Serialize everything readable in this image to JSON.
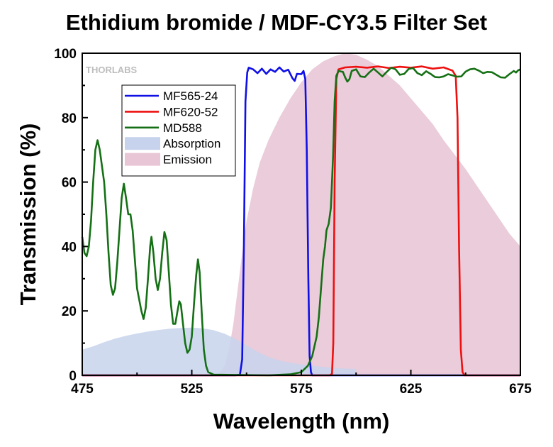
{
  "chart_data": {
    "type": "line",
    "title": "Ethidium bromide / MDF-CY3.5 Filter Set",
    "xlabel": "Wavelength (nm)",
    "ylabel": "Transmission (%)",
    "xlim": [
      475,
      675
    ],
    "ylim": [
      0,
      100
    ],
    "x_ticks": [
      475,
      525,
      575,
      625,
      675
    ],
    "y_ticks": [
      0,
      20,
      40,
      60,
      80,
      100
    ],
    "x_tick_labels": [
      "475",
      "525",
      "575",
      "625",
      "675"
    ],
    "y_tick_labels": [
      "0",
      "20",
      "40",
      "60",
      "80",
      "100"
    ],
    "grid": false,
    "legend_position": "top-left",
    "watermark": "THORLABS",
    "series": [
      {
        "name": "MF565-24",
        "kind": "line",
        "color": "#1010e6",
        "points": [
          [
            475,
            0
          ],
          [
            545,
            0
          ],
          [
            547,
            0.3
          ],
          [
            548,
            5
          ],
          [
            548.8,
            40
          ],
          [
            549.5,
            85
          ],
          [
            550.3,
            94
          ],
          [
            551,
            95.5
          ],
          [
            553,
            95
          ],
          [
            555,
            93.8
          ],
          [
            557,
            95.2
          ],
          [
            559,
            93.6
          ],
          [
            561,
            95
          ],
          [
            563,
            94.2
          ],
          [
            565,
            95.6
          ],
          [
            567,
            94.3
          ],
          [
            569,
            94.9
          ],
          [
            571,
            92.2
          ],
          [
            572,
            91.4
          ],
          [
            573,
            93.6
          ],
          [
            575,
            93.5
          ],
          [
            576,
            94.5
          ],
          [
            576.8,
            92
          ],
          [
            577.5,
            70
          ],
          [
            578.2,
            30
          ],
          [
            578.8,
            6
          ],
          [
            579.4,
            1
          ],
          [
            580,
            0
          ],
          [
            675,
            0
          ]
        ]
      },
      {
        "name": "MF620-52",
        "kind": "line",
        "color": "#ee1010",
        "points": [
          [
            475,
            0
          ],
          [
            588,
            0
          ],
          [
            589,
            0.5
          ],
          [
            589.6,
            10
          ],
          [
            590.2,
            60
          ],
          [
            591,
            92
          ],
          [
            592,
            95
          ],
          [
            595,
            95.6
          ],
          [
            600,
            95.8
          ],
          [
            605,
            95.5
          ],
          [
            610,
            95.9
          ],
          [
            615,
            95.4
          ],
          [
            620,
            95.8
          ],
          [
            625,
            95.5
          ],
          [
            630,
            95.9
          ],
          [
            635,
            95.2
          ],
          [
            640,
            95.6
          ],
          [
            644,
            94.6
          ],
          [
            645.5,
            93
          ],
          [
            646.3,
            80
          ],
          [
            647,
            40
          ],
          [
            647.8,
            8
          ],
          [
            648.6,
            1
          ],
          [
            649.5,
            0
          ],
          [
            675,
            0
          ]
        ]
      },
      {
        "name": "MD588",
        "kind": "line",
        "color": "#157015",
        "points": [
          [
            475,
            43
          ],
          [
            476,
            38
          ],
          [
            477,
            37
          ],
          [
            478,
            40
          ],
          [
            479,
            48
          ],
          [
            480,
            60
          ],
          [
            481,
            70
          ],
          [
            482,
            73
          ],
          [
            483,
            70
          ],
          [
            485,
            60
          ],
          [
            486,
            50
          ],
          [
            487,
            38
          ],
          [
            488,
            28
          ],
          [
            489,
            25
          ],
          [
            490,
            27
          ],
          [
            491,
            35
          ],
          [
            492,
            45
          ],
          [
            493,
            55
          ],
          [
            494,
            59.5
          ],
          [
            495,
            55
          ],
          [
            496,
            50
          ],
          [
            497,
            50
          ],
          [
            498,
            45
          ],
          [
            499,
            36
          ],
          [
            500,
            27
          ],
          [
            502,
            20
          ],
          [
            503,
            17.5
          ],
          [
            504,
            21
          ],
          [
            505,
            30
          ],
          [
            506,
            40
          ],
          [
            506.6,
            43
          ],
          [
            507.5,
            38
          ],
          [
            508.5,
            30
          ],
          [
            509.5,
            26.5
          ],
          [
            510.5,
            30
          ],
          [
            511.5,
            38
          ],
          [
            512.5,
            44.5
          ],
          [
            513.5,
            42
          ],
          [
            514.5,
            32
          ],
          [
            515.5,
            22
          ],
          [
            516.5,
            16
          ],
          [
            517.5,
            16
          ],
          [
            518.5,
            20
          ],
          [
            519.3,
            23
          ],
          [
            520,
            22
          ],
          [
            521,
            16
          ],
          [
            522,
            10
          ],
          [
            523,
            7
          ],
          [
            524,
            8
          ],
          [
            525,
            12
          ],
          [
            526,
            22
          ],
          [
            527,
            31
          ],
          [
            527.8,
            36
          ],
          [
            528.6,
            32
          ],
          [
            529.5,
            20
          ],
          [
            530.5,
            8
          ],
          [
            531.5,
            3
          ],
          [
            532.5,
            1
          ],
          [
            535,
            0.2
          ],
          [
            560,
            0
          ],
          [
            570,
            0.3
          ],
          [
            575,
            1
          ],
          [
            578,
            3
          ],
          [
            580,
            6
          ],
          [
            582,
            12
          ],
          [
            583,
            18
          ],
          [
            584,
            27
          ],
          [
            585,
            36
          ],
          [
            585.8,
            40
          ],
          [
            586.5,
            45
          ],
          [
            587.5,
            47
          ],
          [
            588.5,
            52
          ],
          [
            589.5,
            68
          ],
          [
            590.2,
            85
          ],
          [
            591,
            93
          ],
          [
            592,
            94.5
          ],
          [
            594,
            94.2
          ],
          [
            595,
            92.5
          ],
          [
            596,
            91.2
          ],
          [
            597,
            92
          ],
          [
            598,
            94.5
          ],
          [
            600,
            95
          ],
          [
            602,
            92.8
          ],
          [
            604,
            92.6
          ],
          [
            606,
            94
          ],
          [
            608,
            95.2
          ],
          [
            610,
            94
          ],
          [
            612,
            92.8
          ],
          [
            614,
            94.2
          ],
          [
            616,
            95.5
          ],
          [
            618,
            95
          ],
          [
            620,
            93.3
          ],
          [
            622,
            93.6
          ],
          [
            624,
            95.1
          ],
          [
            626,
            95.4
          ],
          [
            628,
            93.8
          ],
          [
            630,
            93.2
          ],
          [
            632,
            94.4
          ],
          [
            634,
            93.6
          ],
          [
            636,
            92.6
          ],
          [
            638,
            92.5
          ],
          [
            640,
            92.8
          ],
          [
            642,
            93.5
          ],
          [
            644,
            93.1
          ],
          [
            646,
            92.7
          ],
          [
            648,
            92.8
          ],
          [
            650,
            94.3
          ],
          [
            652,
            95
          ],
          [
            654,
            95.2
          ],
          [
            656,
            94.6
          ],
          [
            658,
            93.8
          ],
          [
            660,
            94.2
          ],
          [
            662,
            94.1
          ],
          [
            664,
            93.3
          ],
          [
            666,
            92.5
          ],
          [
            668,
            92.4
          ],
          [
            670,
            93.5
          ],
          [
            672,
            94.5
          ],
          [
            673,
            94
          ],
          [
            674,
            94.7
          ],
          [
            675,
            95
          ]
        ]
      },
      {
        "name": "Absorption",
        "kind": "area",
        "color": "#c7d3ec",
        "points": [
          [
            475,
            8
          ],
          [
            480,
            9
          ],
          [
            485,
            10.3
          ],
          [
            490,
            11.4
          ],
          [
            495,
            12.3
          ],
          [
            500,
            13
          ],
          [
            505,
            13.6
          ],
          [
            510,
            14.1
          ],
          [
            515,
            14.5
          ],
          [
            520,
            14.7
          ],
          [
            525,
            14.8
          ],
          [
            530,
            14.6
          ],
          [
            535,
            14
          ],
          [
            540,
            12.9
          ],
          [
            545,
            11.3
          ],
          [
            550,
            9.3
          ],
          [
            555,
            7.3
          ],
          [
            560,
            5.7
          ],
          [
            565,
            4.6
          ],
          [
            570,
            3.9
          ],
          [
            575,
            3.4
          ],
          [
            580,
            3
          ],
          [
            585,
            2.6
          ],
          [
            590,
            2.3
          ],
          [
            595,
            2.1
          ],
          [
            600,
            2
          ]
        ]
      },
      {
        "name": "Emission",
        "kind": "area",
        "color": "#e9c6d6",
        "points": [
          [
            475,
            0
          ],
          [
            536,
            0
          ],
          [
            538,
            1
          ],
          [
            540,
            3
          ],
          [
            542,
            8
          ],
          [
            544,
            16
          ],
          [
            546,
            27
          ],
          [
            548,
            38
          ],
          [
            550,
            48
          ],
          [
            553,
            58
          ],
          [
            556,
            66
          ],
          [
            560,
            73
          ],
          [
            565,
            80
          ],
          [
            570,
            86
          ],
          [
            575,
            91
          ],
          [
            580,
            95
          ],
          [
            585,
            97.5
          ],
          [
            590,
            99
          ],
          [
            595,
            100
          ],
          [
            600,
            99.5
          ],
          [
            605,
            98
          ],
          [
            610,
            96
          ],
          [
            615,
            93
          ],
          [
            620,
            90
          ],
          [
            625,
            86
          ],
          [
            630,
            82
          ],
          [
            635,
            78
          ],
          [
            640,
            73
          ],
          [
            645,
            68.5
          ],
          [
            650,
            64
          ],
          [
            655,
            59
          ],
          [
            660,
            54
          ],
          [
            665,
            49
          ],
          [
            670,
            44
          ],
          [
            675,
            40
          ]
        ]
      }
    ]
  }
}
